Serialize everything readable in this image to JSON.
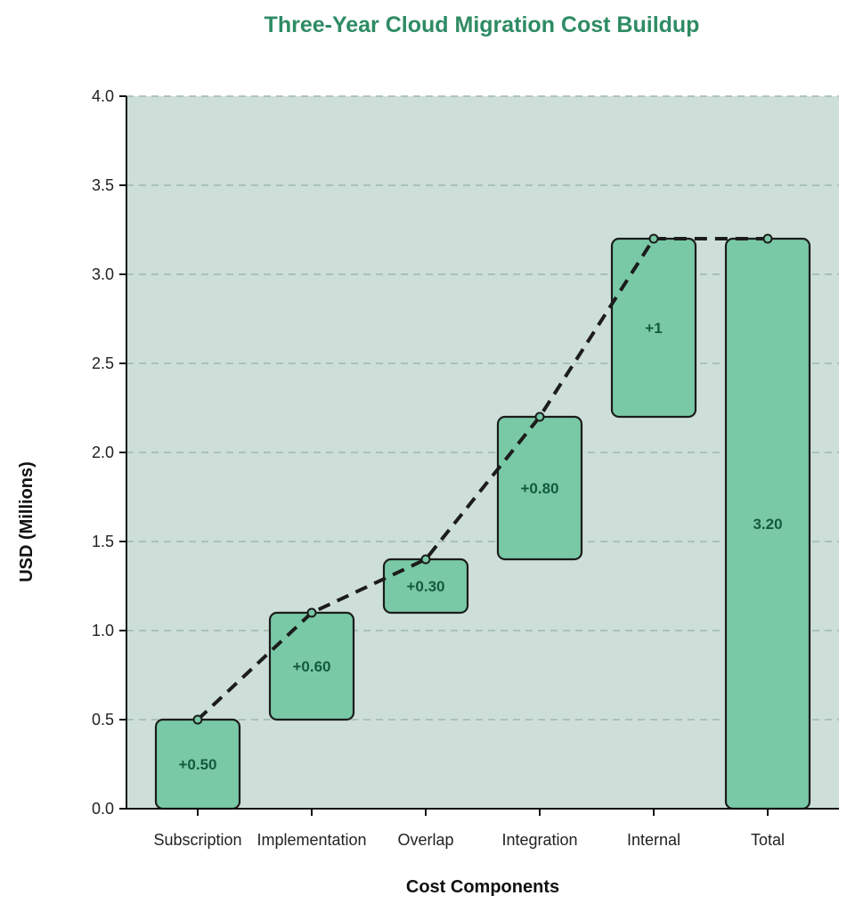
{
  "chart_data": {
    "type": "bar",
    "subtype": "waterfall",
    "title": "Three-Year Cloud Migration Cost Buildup",
    "xlabel": "Cost Components",
    "ylabel": "USD (Millions)",
    "categories": [
      "Subscription",
      "Implementation",
      "Overlap",
      "Integration",
      "Internal",
      "Total"
    ],
    "values": [
      0.5,
      0.6,
      0.3,
      0.8,
      1.0,
      3.2
    ],
    "bases": [
      0.0,
      0.5,
      1.1,
      1.4,
      2.2,
      0.0
    ],
    "data_labels": [
      "+0.50",
      "+0.60",
      "+0.30",
      "+0.80",
      "+1",
      "3.20"
    ],
    "ylim": [
      0,
      4
    ],
    "yticks": [
      "0.0",
      "0.5",
      "1.0",
      "1.5",
      "2.0",
      "2.5",
      "3.0",
      "3.5",
      "4.0"
    ],
    "ytick_values": [
      0,
      0.5,
      1,
      1.5,
      2,
      2.5,
      3,
      3.5,
      4
    ],
    "grid": true,
    "connector": "dashed cumulative line through each bar's running total",
    "colors": {
      "title": "#2e8b63",
      "plot_background": "#cddfd8",
      "bar_fill": "#79c9a6",
      "bar_stroke": "#1c1c1c",
      "label_text": "#145a3c",
      "grid": "#9fb8ae",
      "connector": "#1c1c1c"
    }
  }
}
